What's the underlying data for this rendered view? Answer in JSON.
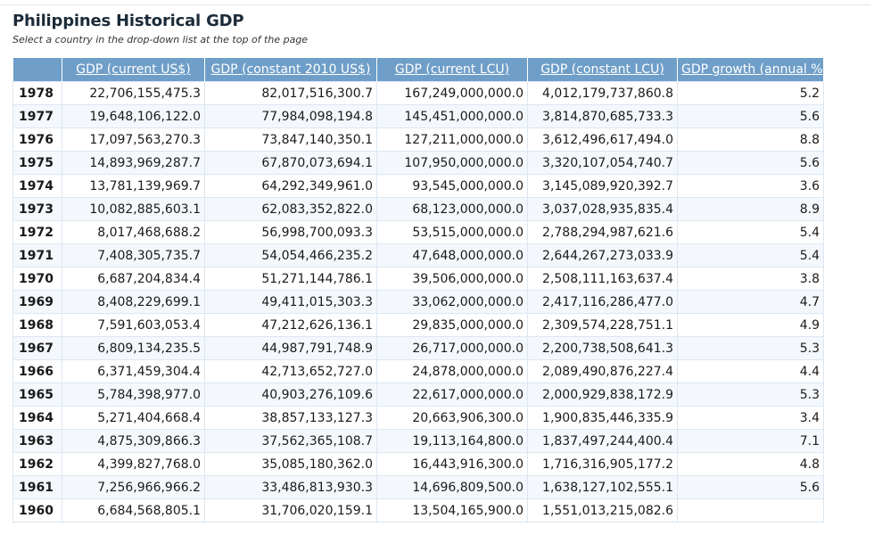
{
  "page": {
    "title": "Philippines Historical GDP",
    "subtitle": "Select a country in the drop-down list at the top of the page"
  },
  "table": {
    "columns": [
      "",
      "GDP (current US$)",
      "GDP (constant 2010 US$)",
      "GDP (current LCU)",
      "GDP (constant LCU)",
      "GDP growth (annual %)"
    ],
    "rows": [
      [
        "1978",
        "22,706,155,475.3",
        "82,017,516,300.7",
        "167,249,000,000.0",
        "4,012,179,737,860.8",
        "5.2"
      ],
      [
        "1977",
        "19,648,106,122.0",
        "77,984,098,194.8",
        "145,451,000,000.0",
        "3,814,870,685,733.3",
        "5.6"
      ],
      [
        "1976",
        "17,097,563,270.3",
        "73,847,140,350.1",
        "127,211,000,000.0",
        "3,612,496,617,494.0",
        "8.8"
      ],
      [
        "1975",
        "14,893,969,287.7",
        "67,870,073,694.1",
        "107,950,000,000.0",
        "3,320,107,054,740.7",
        "5.6"
      ],
      [
        "1974",
        "13,781,139,969.7",
        "64,292,349,961.0",
        "93,545,000,000.0",
        "3,145,089,920,392.7",
        "3.6"
      ],
      [
        "1973",
        "10,082,885,603.1",
        "62,083,352,822.0",
        "68,123,000,000.0",
        "3,037,028,935,835.4",
        "8.9"
      ],
      [
        "1972",
        "8,017,468,688.2",
        "56,998,700,093.3",
        "53,515,000,000.0",
        "2,788,294,987,621.6",
        "5.4"
      ],
      [
        "1971",
        "7,408,305,735.7",
        "54,054,466,235.2",
        "47,648,000,000.0",
        "2,644,267,273,033.9",
        "5.4"
      ],
      [
        "1970",
        "6,687,204,834.4",
        "51,271,144,786.1",
        "39,506,000,000.0",
        "2,508,111,163,637.4",
        "3.8"
      ],
      [
        "1969",
        "8,408,229,699.1",
        "49,411,015,303.3",
        "33,062,000,000.0",
        "2,417,116,286,477.0",
        "4.7"
      ],
      [
        "1968",
        "7,591,603,053.4",
        "47,212,626,136.1",
        "29,835,000,000.0",
        "2,309,574,228,751.1",
        "4.9"
      ],
      [
        "1967",
        "6,809,134,235.5",
        "44,987,791,748.9",
        "26,717,000,000.0",
        "2,200,738,508,641.3",
        "5.3"
      ],
      [
        "1966",
        "6,371,459,304.4",
        "42,713,652,727.0",
        "24,878,000,000.0",
        "2,089,490,876,227.4",
        "4.4"
      ],
      [
        "1965",
        "5,784,398,977.0",
        "40,903,276,109.6",
        "22,617,000,000.0",
        "2,000,929,838,172.9",
        "5.3"
      ],
      [
        "1964",
        "5,271,404,668.4",
        "38,857,133,127.3",
        "20,663,906,300.0",
        "1,900,835,446,335.9",
        "3.4"
      ],
      [
        "1963",
        "4,875,309,866.3",
        "37,562,365,108.7",
        "19,113,164,800.0",
        "1,837,497,244,400.4",
        "7.1"
      ],
      [
        "1962",
        "4,399,827,768.0",
        "35,085,180,362.0",
        "16,443,916,300.0",
        "1,716,316,905,177.2",
        "4.8"
      ],
      [
        "1961",
        "7,256,966,966.2",
        "33,486,813,930.3",
        "14,696,809,500.0",
        "1,638,127,102,555.1",
        "5.6"
      ],
      [
        "1960",
        "6,684,568,805.1",
        "31,706,020,159.1",
        "13,504,165,900.0",
        "1,551,013,215,082.6",
        ""
      ]
    ]
  },
  "colors": {
    "header_bg": "#6f9ec8",
    "header_text": "#ffffff",
    "title": "#1c2b39",
    "cell_border": "#dbe7f2"
  }
}
